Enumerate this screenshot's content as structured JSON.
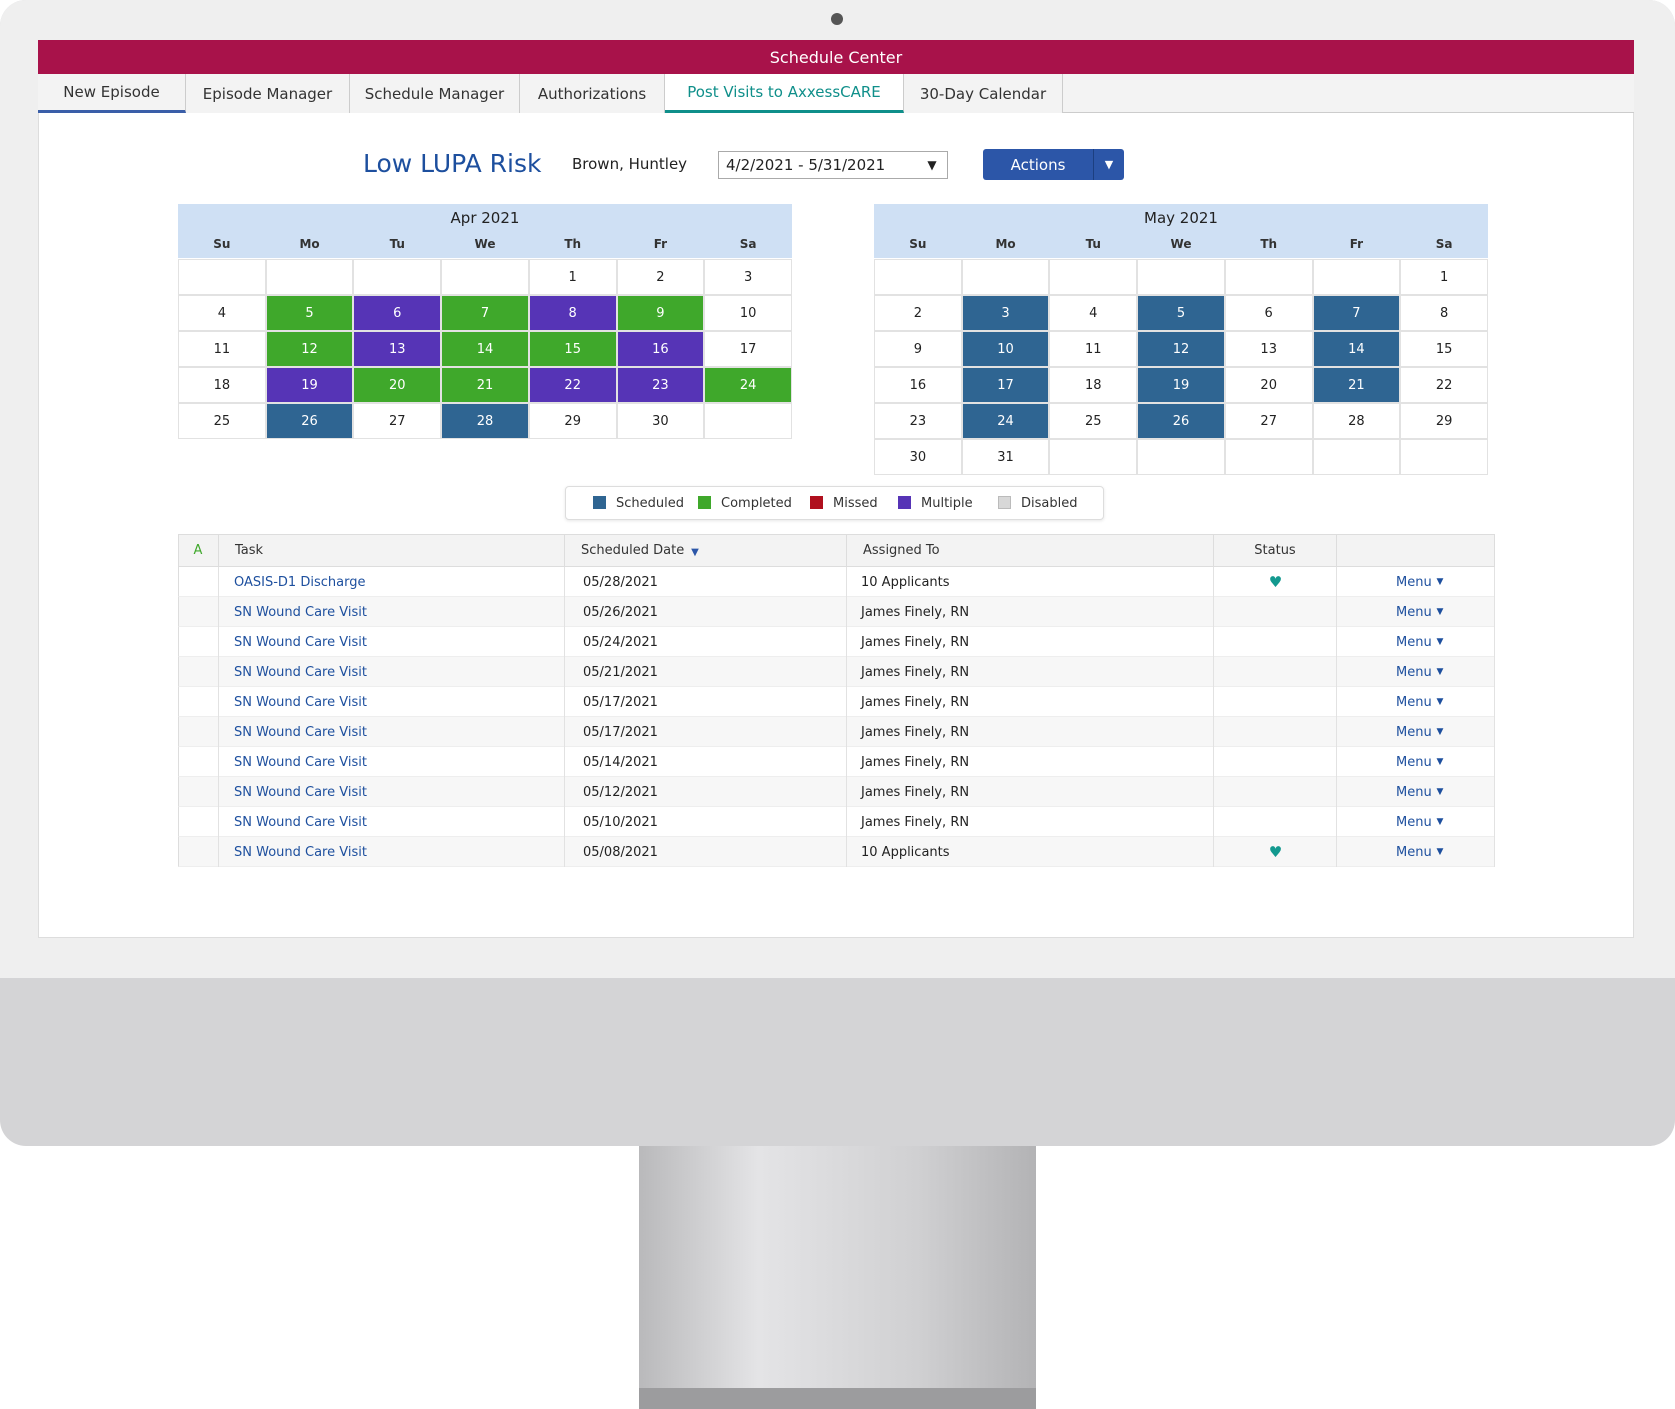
{
  "app": {
    "title": "Schedule Center"
  },
  "tabs": {
    "items": [
      "New Episode",
      "Episode Manager",
      "Schedule Manager",
      "Authorizations",
      "Post Visits to AxxessCARE",
      "30-Day Calendar"
    ],
    "active": 4
  },
  "header": {
    "title": "Low LUPA Risk",
    "patient": "Brown, Huntley",
    "date_range": "4/2/2021 - 5/31/2021",
    "actions": "Actions"
  },
  "status_colors": {
    "scheduled": "#2f6592",
    "completed": "#3fa82b",
    "missed": "#b0101e",
    "multiple": "#5634b6",
    "disabled": "#d8d8d8"
  },
  "calendars": [
    {
      "month": "Apr 2021",
      "weekdays": [
        "Su",
        "Mo",
        "Tu",
        "We",
        "Th",
        "Fr",
        "Sa"
      ],
      "weeks": [
        [
          null,
          null,
          null,
          null,
          1,
          2,
          3
        ],
        [
          4,
          {
            "day": 5,
            "status": "completed"
          },
          {
            "day": 6,
            "status": "multiple"
          },
          {
            "day": 7,
            "status": "completed"
          },
          {
            "day": 8,
            "status": "multiple"
          },
          {
            "day": 9,
            "status": "completed"
          },
          10
        ],
        [
          11,
          {
            "day": 12,
            "status": "completed"
          },
          {
            "day": 13,
            "status": "multiple"
          },
          {
            "day": 14,
            "status": "completed"
          },
          {
            "day": 15,
            "status": "completed"
          },
          {
            "day": 16,
            "status": "multiple"
          },
          17
        ],
        [
          18,
          {
            "day": 19,
            "status": "multiple"
          },
          {
            "day": 20,
            "status": "completed"
          },
          {
            "day": 21,
            "status": "completed"
          },
          {
            "day": 22,
            "status": "multiple"
          },
          {
            "day": 23,
            "status": "multiple"
          },
          {
            "day": 24,
            "status": "completed"
          }
        ],
        [
          25,
          {
            "day": 26,
            "status": "scheduled"
          },
          27,
          {
            "day": 28,
            "status": "scheduled"
          },
          29,
          30,
          null
        ]
      ]
    },
    {
      "month": "May 2021",
      "weekdays": [
        "Su",
        "Mo",
        "Tu",
        "We",
        "Th",
        "Fr",
        "Sa"
      ],
      "weeks": [
        [
          null,
          null,
          null,
          null,
          null,
          null,
          1
        ],
        [
          2,
          {
            "day": 3,
            "status": "scheduled"
          },
          4,
          {
            "day": 5,
            "status": "scheduled"
          },
          6,
          {
            "day": 7,
            "status": "scheduled"
          },
          8
        ],
        [
          9,
          {
            "day": 10,
            "status": "scheduled"
          },
          11,
          {
            "day": 12,
            "status": "scheduled"
          },
          13,
          {
            "day": 14,
            "status": "scheduled"
          },
          15
        ],
        [
          16,
          {
            "day": 17,
            "status": "scheduled"
          },
          18,
          {
            "day": 19,
            "status": "scheduled"
          },
          20,
          {
            "day": 21,
            "status": "scheduled"
          },
          22
        ],
        [
          23,
          {
            "day": 24,
            "status": "scheduled"
          },
          25,
          {
            "day": 26,
            "status": "scheduled"
          },
          27,
          28,
          29
        ],
        [
          30,
          31,
          null,
          null,
          null,
          null,
          null
        ]
      ]
    }
  ],
  "legend": [
    {
      "label": "Scheduled",
      "status": "scheduled"
    },
    {
      "label": "Completed",
      "status": "completed"
    },
    {
      "label": "Missed",
      "status": "missed"
    },
    {
      "label": "Multiple",
      "status": "multiple"
    },
    {
      "label": "Disabled",
      "status": "disabled"
    }
  ],
  "table": {
    "headers": [
      "A",
      "Task",
      "Scheduled Date",
      "Assigned To",
      "Status"
    ],
    "rows": [
      {
        "task": "OASIS-D1 Discharge",
        "date": "05/28/2021",
        "assigned": "10 Applicants",
        "heart": true,
        "menu": "Menu"
      },
      {
        "task": "SN Wound Care Visit",
        "date": "05/26/2021",
        "assigned": "James Finely, RN",
        "heart": false,
        "menu": "Menu"
      },
      {
        "task": "SN Wound Care Visit",
        "date": "05/24/2021",
        "assigned": "James Finely, RN",
        "heart": false,
        "menu": "Menu"
      },
      {
        "task": "SN Wound Care Visit",
        "date": "05/21/2021",
        "assigned": "James Finely, RN",
        "heart": false,
        "menu": "Menu"
      },
      {
        "task": "SN Wound Care Visit",
        "date": "05/17/2021",
        "assigned": "James Finely, RN",
        "heart": false,
        "menu": "Menu"
      },
      {
        "task": "SN Wound Care Visit",
        "date": "05/17/2021",
        "assigned": "James Finely, RN",
        "heart": false,
        "menu": "Menu"
      },
      {
        "task": "SN Wound Care Visit",
        "date": "05/14/2021",
        "assigned": "James Finely, RN",
        "heart": false,
        "menu": "Menu"
      },
      {
        "task": "SN Wound Care Visit",
        "date": "05/12/2021",
        "assigned": "James Finely, RN",
        "heart": false,
        "menu": "Menu"
      },
      {
        "task": "SN Wound Care Visit",
        "date": "05/10/2021",
        "assigned": "James Finely, RN",
        "heart": false,
        "menu": "Menu"
      },
      {
        "task": "SN Wound Care Visit",
        "date": "05/08/2021",
        "assigned": "10 Applicants",
        "heart": true,
        "menu": "Menu"
      }
    ]
  }
}
